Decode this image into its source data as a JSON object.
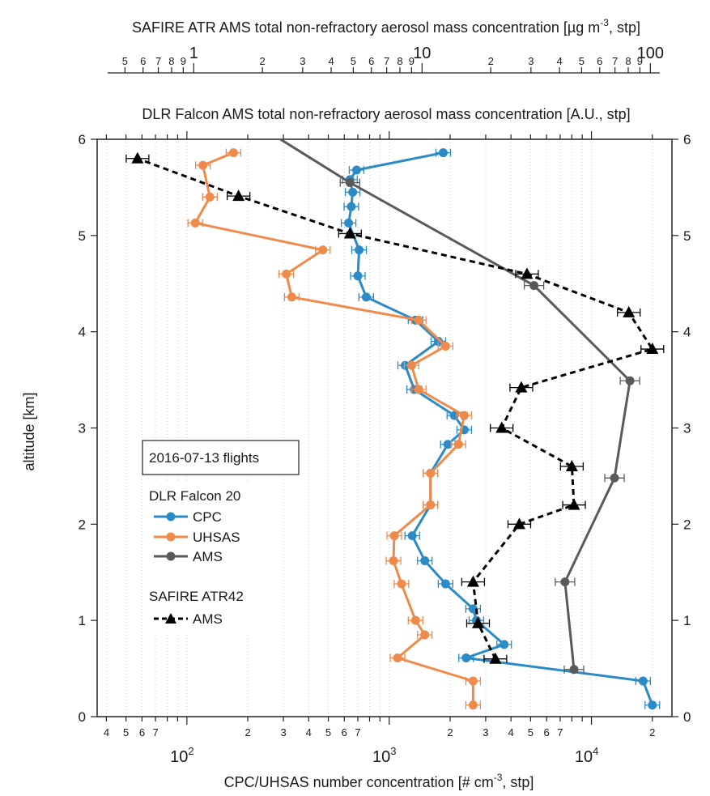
{
  "chart_data": {
    "type": "line",
    "title_top": "SAFIRE ATR AMS total non-refractory aerosol mass concentration [µg m^-3, stp]",
    "title_top_main": "SAFIRE ATR AMS total non-refractory aerosol mass concentration [µg m",
    "title_top_sup": "-3",
    "title_top_tail": ", stp]",
    "title_mid": "DLR Falcon AMS total non-refractory aerosol mass concentration [A.U., stp]",
    "xlabel": "CPC/UHSAS number concentration [# cm^-3, stp]",
    "xlabel_main": "CPC/UHSAS number concentration [# cm",
    "xlabel_sup": "-3",
    "xlabel_tail": ", stp]",
    "ylabel": "altitude [km]",
    "x_scale": "log",
    "xlim": [
      36,
      25000
    ],
    "ylim": [
      0,
      6
    ],
    "yticks": [
      "0",
      "1",
      "2",
      "3",
      "4",
      "5",
      "6"
    ],
    "bottom_major_ticks": [
      {
        "base": "10",
        "exp": "2"
      },
      {
        "base": "10",
        "exp": "3"
      },
      {
        "base": "10",
        "exp": "4"
      }
    ],
    "bottom_minor_labels": [
      "4",
      "5",
      "6",
      "7",
      "2",
      "3",
      "4",
      "5",
      "6",
      "7",
      "2",
      "3",
      "4",
      "5",
      "6",
      "7",
      "2"
    ],
    "top_axis": {
      "scale": "log",
      "range": [
        0.42,
        110
      ],
      "major_labels": [
        "1",
        "10",
        "100"
      ],
      "minor_labels": [
        "5",
        "6",
        "7",
        "8",
        "9",
        "2",
        "3",
        "4",
        "5",
        "6",
        "7",
        "8",
        "9",
        "2",
        "3",
        "4",
        "5",
        "6",
        "7",
        "8",
        "9"
      ]
    },
    "grid": "vertical dotted",
    "legend": {
      "position": "bottom-left",
      "title": "2016-07-13 flights",
      "group1": "DLR Falcon 20",
      "group2": "SAFIRE ATR42",
      "entries": [
        "CPC",
        "UHSAS",
        "AMS",
        "AMS"
      ]
    },
    "series": [
      {
        "name": "CPC",
        "color": "#2a8bc7",
        "points": [
          {
            "x": 20000,
            "y": 0.12
          },
          {
            "x": 18000,
            "y": 0.37
          },
          {
            "x": 2400,
            "y": 0.61
          },
          {
            "x": 3700,
            "y": 0.75
          },
          {
            "x": 2700,
            "y": 1.0
          },
          {
            "x": 2600,
            "y": 1.12
          },
          {
            "x": 1900,
            "y": 1.38
          },
          {
            "x": 1500,
            "y": 1.62
          },
          {
            "x": 1300,
            "y": 1.88
          },
          {
            "x": 1600,
            "y": 2.2
          },
          {
            "x": 1600,
            "y": 2.53
          },
          {
            "x": 1950,
            "y": 2.83
          },
          {
            "x": 2350,
            "y": 2.98
          },
          {
            "x": 2100,
            "y": 3.13
          },
          {
            "x": 1330,
            "y": 3.4
          },
          {
            "x": 1200,
            "y": 3.65
          },
          {
            "x": 1750,
            "y": 3.9
          },
          {
            "x": 1350,
            "y": 4.12
          },
          {
            "x": 770,
            "y": 4.36
          },
          {
            "x": 700,
            "y": 4.58
          },
          {
            "x": 710,
            "y": 4.85
          },
          {
            "x": 630,
            "y": 5.13
          },
          {
            "x": 650,
            "y": 5.3
          },
          {
            "x": 660,
            "y": 5.45
          },
          {
            "x": 640,
            "y": 5.58
          },
          {
            "x": 690,
            "y": 5.68
          },
          {
            "x": 1850,
            "y": 5.86
          }
        ]
      },
      {
        "name": "UHSAS",
        "color": "#f08a4b",
        "points": [
          {
            "x": 2600,
            "y": 0.12
          },
          {
            "x": 2600,
            "y": 0.37
          },
          {
            "x": 1100,
            "y": 0.61
          },
          {
            "x": 1500,
            "y": 0.85
          },
          {
            "x": 1350,
            "y": 1.0
          },
          {
            "x": 1150,
            "y": 1.38
          },
          {
            "x": 1050,
            "y": 1.62
          },
          {
            "x": 1060,
            "y": 1.88
          },
          {
            "x": 1600,
            "y": 2.2
          },
          {
            "x": 1600,
            "y": 2.53
          },
          {
            "x": 2200,
            "y": 2.83
          },
          {
            "x": 2350,
            "y": 3.13
          },
          {
            "x": 1400,
            "y": 3.4
          },
          {
            "x": 1290,
            "y": 3.65
          },
          {
            "x": 1900,
            "y": 3.85
          },
          {
            "x": 1400,
            "y": 4.12
          },
          {
            "x": 330,
            "y": 4.36
          },
          {
            "x": 310,
            "y": 4.6
          },
          {
            "x": 470,
            "y": 4.85
          },
          {
            "x": 110,
            "y": 5.13
          },
          {
            "x": 130,
            "y": 5.4
          },
          {
            "x": 120,
            "y": 5.73
          },
          {
            "x": 170,
            "y": 5.86
          }
        ],
        "note_top": "SAFIRE ATR AMS top axis"
      },
      {
        "name": "AMS",
        "color": "#5a5a5a",
        "points": [
          {
            "x": 8200,
            "y": 0.49
          },
          {
            "x": 7400,
            "y": 1.4
          },
          {
            "x": 13000,
            "y": 2.48
          },
          {
            "x": 15500,
            "y": 3.49
          },
          {
            "x": 5200,
            "y": 4.48
          },
          {
            "x": 640,
            "y": 5.55
          }
        ],
        "extended_to": {
          "x": 290,
          "y": 6.0
        }
      },
      {
        "name": "AMS",
        "color": "#000000",
        "dashed": true,
        "points": [
          {
            "x": 3350,
            "y": 0.6
          },
          {
            "x": 2750,
            "y": 0.97
          },
          {
            "x": 2600,
            "y": 1.4
          },
          {
            "x": 4400,
            "y": 2.0
          },
          {
            "x": 8200,
            "y": 2.2
          },
          {
            "x": 8000,
            "y": 2.6
          },
          {
            "x": 3600,
            "y": 3.0
          },
          {
            "x": 4500,
            "y": 3.42
          },
          {
            "x": 20000,
            "y": 3.82
          },
          {
            "x": 15300,
            "y": 4.2
          },
          {
            "x": 4800,
            "y": 4.6
          },
          {
            "x": 640,
            "y": 5.02
          },
          {
            "x": 180,
            "y": 5.41
          },
          {
            "x": 57,
            "y": 5.8
          }
        ]
      }
    ]
  }
}
